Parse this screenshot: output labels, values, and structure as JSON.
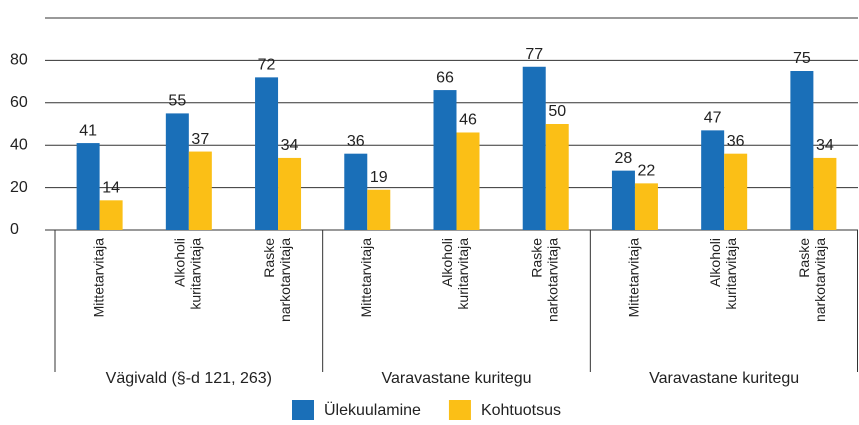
{
  "chart_data": {
    "type": "bar",
    "categories": [
      [
        "Mittetarvitaja"
      ],
      [
        "Alkoholi",
        "kuritarvitaja"
      ],
      [
        "Raske",
        "narkotarvitaja"
      ],
      [
        "Mittetarvitaja"
      ],
      [
        "Alkoholi",
        "kuritarvitaja"
      ],
      [
        "Raske",
        "narkotarvitaja"
      ],
      [
        "Mittetarvitaja"
      ],
      [
        "Alkoholi",
        "kuritarvitaja"
      ],
      [
        "Raske",
        "narkotarvitaja"
      ]
    ],
    "group_labels": [
      "Vägivald (§-d 121, 263)",
      "Varavastane kuritegu",
      "Varavastane kuritegu"
    ],
    "series": [
      {
        "name": "Ülekuulamine",
        "color": "#1a6fb8",
        "values": [
          41,
          55,
          72,
          36,
          66,
          77,
          28,
          47,
          75
        ]
      },
      {
        "name": "Kohtuotsus",
        "color": "#fbbf16",
        "values": [
          14,
          37,
          34,
          19,
          46,
          50,
          22,
          36,
          34
        ]
      }
    ],
    "ylim": [
      0,
      100
    ],
    "yticks": [
      0,
      20,
      40,
      60,
      80
    ],
    "grid": true,
    "legend": "bottom"
  }
}
